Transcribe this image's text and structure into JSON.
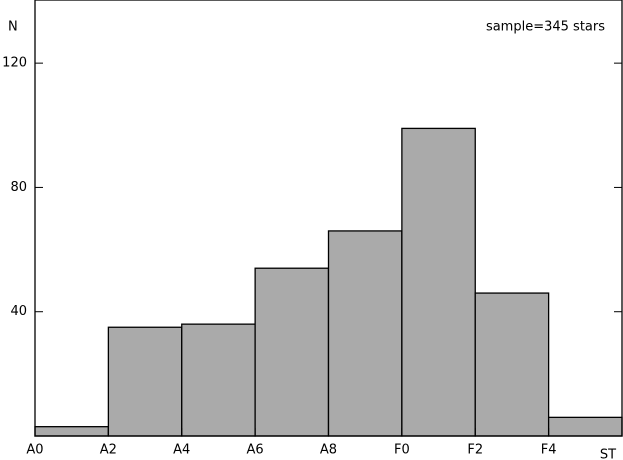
{
  "chart_data": {
    "type": "histogram",
    "x_label": "ST",
    "y_label": "N",
    "annotation": "sample=345 stars",
    "bins": [
      "A0",
      "A2",
      "A4",
      "A6",
      "A8",
      "F0",
      "F2",
      "F4",
      null
    ],
    "values": [
      3,
      35,
      36,
      54,
      66,
      99,
      46,
      6
    ],
    "color": "#aaaaaa",
    "ylim": [
      0,
      140
    ],
    "yticks": [
      40,
      80,
      120
    ]
  }
}
